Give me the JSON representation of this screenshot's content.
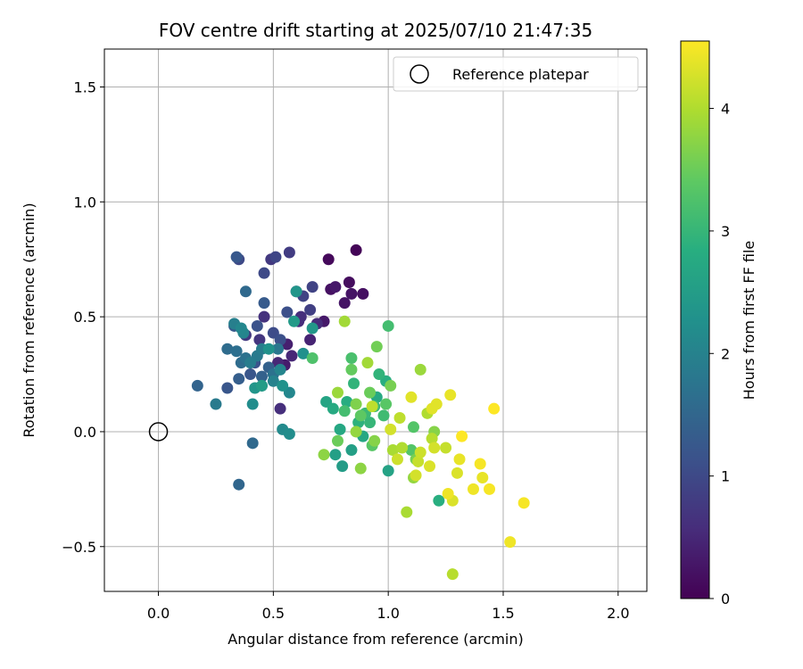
{
  "chart_data": {
    "type": "scatter",
    "title": "FOV centre drift starting at 2025/07/10 21:47:35",
    "xlabel": "Angular distance from reference (arcmin)",
    "ylabel": "Rotation from reference (arcmin)",
    "xlim": [
      -0.235,
      2.125
    ],
    "ylim": [
      -0.695,
      1.665
    ],
    "xticks": [
      0.0,
      0.5,
      1.0,
      1.5,
      2.0
    ],
    "xtick_labels": [
      "0.0",
      "0.5",
      "1.0",
      "1.5",
      "2.0"
    ],
    "yticks": [
      -0.5,
      0.0,
      0.5,
      1.0,
      1.5
    ],
    "ytick_labels": [
      "−0.5",
      "0.0",
      "0.5",
      "1.0",
      "1.5"
    ],
    "grid": true,
    "legend": {
      "placement": "upper-right",
      "entries": [
        {
          "label": "Reference platepar",
          "marker": "open-circle"
        }
      ]
    },
    "reference_point": {
      "x": 0.0,
      "y": 0.0
    },
    "colorbar": {
      "label": "Hours from first FF file",
      "colormap": "viridis",
      "range": [
        0,
        4.55
      ],
      "ticks": [
        0,
        1,
        2,
        3,
        4
      ],
      "tick_labels": [
        "0",
        "1",
        "2",
        "3",
        "4"
      ]
    },
    "points": [
      {
        "x": 0.86,
        "y": 0.79,
        "t": 0.05
      },
      {
        "x": 0.74,
        "y": 0.75,
        "t": 0.1
      },
      {
        "x": 0.83,
        "y": 0.65,
        "t": 0.15
      },
      {
        "x": 0.89,
        "y": 0.6,
        "t": 0.2
      },
      {
        "x": 0.75,
        "y": 0.62,
        "t": 0.2
      },
      {
        "x": 0.84,
        "y": 0.6,
        "t": 0.25
      },
      {
        "x": 0.81,
        "y": 0.56,
        "t": 0.25
      },
      {
        "x": 0.77,
        "y": 0.63,
        "t": 0.3
      },
      {
        "x": 0.72,
        "y": 0.48,
        "t": 0.3
      },
      {
        "x": 0.55,
        "y": 0.29,
        "t": 0.35
      },
      {
        "x": 0.56,
        "y": 0.38,
        "t": 0.4
      },
      {
        "x": 0.66,
        "y": 0.4,
        "t": 0.45
      },
      {
        "x": 0.52,
        "y": 0.3,
        "t": 0.5
      },
      {
        "x": 0.58,
        "y": 0.33,
        "t": 0.5
      },
      {
        "x": 0.61,
        "y": 0.48,
        "t": 0.55
      },
      {
        "x": 0.62,
        "y": 0.5,
        "t": 0.6
      },
      {
        "x": 0.69,
        "y": 0.47,
        "t": 0.55
      },
      {
        "x": 0.53,
        "y": 0.1,
        "t": 0.6
      },
      {
        "x": 0.46,
        "y": 0.5,
        "t": 0.65
      },
      {
        "x": 0.44,
        "y": 0.4,
        "t": 0.7
      },
      {
        "x": 0.38,
        "y": 0.42,
        "t": 0.75
      },
      {
        "x": 0.49,
        "y": 0.75,
        "t": 0.75
      },
      {
        "x": 0.57,
        "y": 0.78,
        "t": 0.8
      },
      {
        "x": 0.6,
        "y": 0.61,
        "t": 0.8
      },
      {
        "x": 0.66,
        "y": 0.53,
        "t": 0.85
      },
      {
        "x": 0.67,
        "y": 0.63,
        "t": 0.9
      },
      {
        "x": 0.63,
        "y": 0.59,
        "t": 0.9
      },
      {
        "x": 0.51,
        "y": 0.76,
        "t": 0.95
      },
      {
        "x": 0.35,
        "y": 0.75,
        "t": 1.0
      },
      {
        "x": 0.46,
        "y": 0.69,
        "t": 1.0
      },
      {
        "x": 0.5,
        "y": 0.43,
        "t": 1.05
      },
      {
        "x": 0.53,
        "y": 0.4,
        "t": 1.1
      },
      {
        "x": 0.56,
        "y": 0.52,
        "t": 1.1
      },
      {
        "x": 0.43,
        "y": 0.46,
        "t": 1.15
      },
      {
        "x": 0.42,
        "y": 0.3,
        "t": 1.15
      },
      {
        "x": 0.4,
        "y": 0.25,
        "t": 1.2
      },
      {
        "x": 0.3,
        "y": 0.19,
        "t": 1.2
      },
      {
        "x": 0.34,
        "y": 0.76,
        "t": 1.25
      },
      {
        "x": 0.46,
        "y": 0.56,
        "t": 1.3
      },
      {
        "x": 0.33,
        "y": 0.46,
        "t": 1.3
      },
      {
        "x": 0.35,
        "y": 0.23,
        "t": 1.35
      },
      {
        "x": 0.48,
        "y": 0.28,
        "t": 1.4
      },
      {
        "x": 0.45,
        "y": 0.24,
        "t": 1.4
      },
      {
        "x": 0.17,
        "y": 0.2,
        "t": 1.45
      },
      {
        "x": 0.35,
        "y": -0.23,
        "t": 1.5
      },
      {
        "x": 0.41,
        "y": -0.05,
        "t": 1.55
      },
      {
        "x": 0.38,
        "y": 0.61,
        "t": 1.55
      },
      {
        "x": 0.3,
        "y": 0.36,
        "t": 1.6
      },
      {
        "x": 0.36,
        "y": 0.3,
        "t": 1.6
      },
      {
        "x": 0.34,
        "y": 0.35,
        "t": 1.65
      },
      {
        "x": 0.38,
        "y": 0.32,
        "t": 1.7
      },
      {
        "x": 0.5,
        "y": 0.25,
        "t": 1.7
      },
      {
        "x": 0.45,
        "y": 0.2,
        "t": 1.75
      },
      {
        "x": 0.52,
        "y": 0.36,
        "t": 1.8
      },
      {
        "x": 0.25,
        "y": 0.12,
        "t": 1.85
      },
      {
        "x": 0.43,
        "y": 0.33,
        "t": 1.85
      },
      {
        "x": 0.45,
        "y": 0.36,
        "t": 1.9
      },
      {
        "x": 0.4,
        "y": 0.3,
        "t": 1.9
      },
      {
        "x": 0.33,
        "y": 0.47,
        "t": 1.95
      },
      {
        "x": 0.5,
        "y": 0.22,
        "t": 2.0
      },
      {
        "x": 0.53,
        "y": 0.27,
        "t": 2.05
      },
      {
        "x": 0.37,
        "y": 0.43,
        "t": 2.05
      },
      {
        "x": 0.36,
        "y": 0.45,
        "t": 2.1
      },
      {
        "x": 0.57,
        "y": 0.17,
        "t": 2.1
      },
      {
        "x": 0.54,
        "y": 0.01,
        "t": 2.15
      },
      {
        "x": 0.57,
        "y": -0.01,
        "t": 2.2
      },
      {
        "x": 0.41,
        "y": 0.12,
        "t": 2.2
      },
      {
        "x": 0.63,
        "y": 0.34,
        "t": 2.25
      },
      {
        "x": 0.48,
        "y": 0.36,
        "t": 2.3
      },
      {
        "x": 0.54,
        "y": 0.2,
        "t": 2.3
      },
      {
        "x": 0.42,
        "y": 0.19,
        "t": 2.35
      },
      {
        "x": 0.6,
        "y": 0.61,
        "t": 2.35
      },
      {
        "x": 0.67,
        "y": 0.45,
        "t": 2.4
      },
      {
        "x": 0.59,
        "y": 0.48,
        "t": 2.45
      },
      {
        "x": 0.45,
        "y": 0.2,
        "t": 2.5
      },
      {
        "x": 0.8,
        "y": -0.15,
        "t": 2.5
      },
      {
        "x": 0.77,
        "y": -0.1,
        "t": 2.55
      },
      {
        "x": 0.84,
        "y": -0.08,
        "t": 2.55
      },
      {
        "x": 1.0,
        "y": -0.17,
        "t": 2.6
      },
      {
        "x": 0.73,
        "y": 0.13,
        "t": 2.65
      },
      {
        "x": 0.79,
        "y": 0.01,
        "t": 2.7
      },
      {
        "x": 0.89,
        "y": -0.02,
        "t": 2.7
      },
      {
        "x": 0.95,
        "y": 0.15,
        "t": 2.75
      },
      {
        "x": 0.76,
        "y": 0.1,
        "t": 2.75
      },
      {
        "x": 0.82,
        "y": 0.13,
        "t": 2.8
      },
      {
        "x": 1.22,
        "y": -0.3,
        "t": 2.85
      },
      {
        "x": 0.99,
        "y": 0.22,
        "t": 2.85
      },
      {
        "x": 0.87,
        "y": 0.04,
        "t": 2.9
      },
      {
        "x": 0.96,
        "y": 0.25,
        "t": 2.95
      },
      {
        "x": 0.85,
        "y": 0.21,
        "t": 2.95
      },
      {
        "x": 0.92,
        "y": 0.04,
        "t": 3.0
      },
      {
        "x": 0.94,
        "y": 0.11,
        "t": 3.05
      },
      {
        "x": 0.9,
        "y": 0.08,
        "t": 3.05
      },
      {
        "x": 0.98,
        "y": 0.07,
        "t": 3.1
      },
      {
        "x": 1.0,
        "y": 0.46,
        "t": 3.15
      },
      {
        "x": 0.81,
        "y": 0.09,
        "t": 3.15
      },
      {
        "x": 0.84,
        "y": 0.32,
        "t": 3.2
      },
      {
        "x": 0.67,
        "y": 0.32,
        "t": 3.25
      },
      {
        "x": 1.11,
        "y": 0.02,
        "t": 3.3
      },
      {
        "x": 1.1,
        "y": -0.08,
        "t": 3.3
      },
      {
        "x": 0.99,
        "y": 0.12,
        "t": 3.35
      },
      {
        "x": 0.93,
        "y": -0.06,
        "t": 3.35
      },
      {
        "x": 0.88,
        "y": 0.07,
        "t": 3.4
      },
      {
        "x": 0.84,
        "y": 0.27,
        "t": 3.45
      },
      {
        "x": 0.92,
        "y": 0.17,
        "t": 3.5
      },
      {
        "x": 0.78,
        "y": -0.04,
        "t": 3.5
      },
      {
        "x": 0.95,
        "y": 0.37,
        "t": 3.55
      },
      {
        "x": 1.12,
        "y": -0.12,
        "t": 3.6
      },
      {
        "x": 1.01,
        "y": 0.2,
        "t": 3.6
      },
      {
        "x": 0.86,
        "y": 0.12,
        "t": 3.65
      },
      {
        "x": 0.94,
        "y": -0.04,
        "t": 3.7
      },
      {
        "x": 1.2,
        "y": 0.0,
        "t": 3.7
      },
      {
        "x": 0.72,
        "y": -0.1,
        "t": 3.75
      },
      {
        "x": 0.88,
        "y": -0.16,
        "t": 3.75
      },
      {
        "x": 1.11,
        "y": -0.2,
        "t": 3.8
      },
      {
        "x": 0.86,
        "y": 0.0,
        "t": 3.8
      },
      {
        "x": 0.78,
        "y": 0.17,
        "t": 3.85
      },
      {
        "x": 1.14,
        "y": 0.27,
        "t": 3.85
      },
      {
        "x": 0.81,
        "y": 0.48,
        "t": 3.9
      },
      {
        "x": 0.91,
        "y": 0.3,
        "t": 3.9
      },
      {
        "x": 1.02,
        "y": -0.08,
        "t": 3.95
      },
      {
        "x": 1.08,
        "y": -0.35,
        "t": 3.95
      },
      {
        "x": 1.06,
        "y": -0.07,
        "t": 4.0
      },
      {
        "x": 1.17,
        "y": 0.08,
        "t": 4.0
      },
      {
        "x": 1.28,
        "y": -0.62,
        "t": 4.05
      },
      {
        "x": 1.19,
        "y": -0.03,
        "t": 4.05
      },
      {
        "x": 0.93,
        "y": 0.11,
        "t": 4.1
      },
      {
        "x": 1.05,
        "y": 0.06,
        "t": 4.1
      },
      {
        "x": 1.13,
        "y": -0.13,
        "t": 4.15
      },
      {
        "x": 1.25,
        "y": -0.07,
        "t": 4.15
      },
      {
        "x": 1.14,
        "y": -0.09,
        "t": 4.2
      },
      {
        "x": 1.04,
        "y": -0.12,
        "t": 4.2
      },
      {
        "x": 1.2,
        "y": -0.07,
        "t": 4.25
      },
      {
        "x": 1.01,
        "y": 0.01,
        "t": 4.25
      },
      {
        "x": 1.18,
        "y": -0.15,
        "t": 4.3
      },
      {
        "x": 1.28,
        "y": -0.3,
        "t": 4.3
      },
      {
        "x": 1.1,
        "y": 0.15,
        "t": 4.35
      },
      {
        "x": 1.19,
        "y": 0.1,
        "t": 4.35
      },
      {
        "x": 1.31,
        "y": -0.12,
        "t": 4.4
      },
      {
        "x": 1.41,
        "y": -0.2,
        "t": 4.4
      },
      {
        "x": 1.26,
        "y": -0.27,
        "t": 4.45
      },
      {
        "x": 1.53,
        "y": -0.48,
        "t": 4.45
      },
      {
        "x": 1.44,
        "y": -0.25,
        "t": 4.5
      },
      {
        "x": 1.59,
        "y": -0.31,
        "t": 4.5
      },
      {
        "x": 1.46,
        "y": 0.1,
        "t": 4.55
      },
      {
        "x": 1.32,
        "y": -0.02,
        "t": 4.55
      },
      {
        "x": 1.4,
        "y": -0.14,
        "t": 4.5
      },
      {
        "x": 1.37,
        "y": -0.25,
        "t": 4.45
      },
      {
        "x": 1.27,
        "y": 0.16,
        "t": 4.4
      },
      {
        "x": 1.21,
        "y": 0.12,
        "t": 4.35
      },
      {
        "x": 1.3,
        "y": -0.18,
        "t": 4.3
      },
      {
        "x": 1.12,
        "y": -0.19,
        "t": 4.25
      }
    ]
  }
}
